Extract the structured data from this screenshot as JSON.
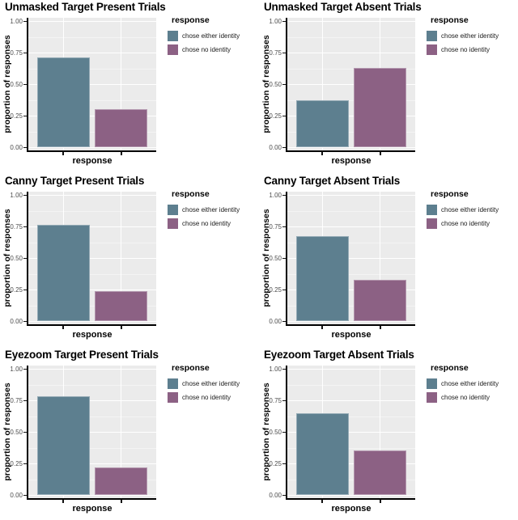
{
  "palette": {
    "bar_chose_either_identity": "#5d7f8f",
    "bar_chose_no_identity": "#8c6184",
    "panel_background": "#ebebeb",
    "grid_major": "#ffffff",
    "grid_minor": "#f4f4f4",
    "axis_line": "#000000",
    "tick_label_text": "#4d4d4d",
    "title_text": "#000000",
    "page_background": "#ffffff"
  },
  "chart_data": [
    {
      "type": "bar",
      "title": "Unmasked Target Present Trials",
      "categories": [
        "chose either identity",
        "chose no identity"
      ],
      "values": [
        0.71,
        0.3
      ],
      "series_colors": [
        "#5d7f8f",
        "#8c6184"
      ],
      "xlabel": "response",
      "ylabel": "proportion of responses",
      "yticks": [
        "0.00",
        "0.25",
        "0.50",
        "0.75",
        "1.00"
      ],
      "ytick_values": [
        0,
        0.25,
        0.5,
        0.75,
        1.0
      ],
      "ylim": [
        0,
        1.05
      ],
      "grid": "major+minor horizontal, major vertical at bars",
      "legend_title": "response",
      "legend_position": "right"
    },
    {
      "type": "bar",
      "title": "Unmasked Target Absent Trials",
      "categories": [
        "chose either identity",
        "chose no identity"
      ],
      "values": [
        0.37,
        0.63
      ],
      "series_colors": [
        "#5d7f8f",
        "#8c6184"
      ],
      "xlabel": "response",
      "ylabel": "proportion of responses",
      "yticks": [
        "0.00",
        "0.25",
        "0.50",
        "0.75",
        "1.00"
      ],
      "ytick_values": [
        0,
        0.25,
        0.5,
        0.75,
        1.0
      ],
      "ylim": [
        0,
        1.05
      ],
      "grid": "major+minor horizontal, major vertical at bars",
      "legend_title": "response",
      "legend_position": "right"
    },
    {
      "type": "bar",
      "title": "Canny Target Present Trials",
      "categories": [
        "chose either identity",
        "chose no identity"
      ],
      "values": [
        0.76,
        0.24
      ],
      "series_colors": [
        "#5d7f8f",
        "#8c6184"
      ],
      "xlabel": "response",
      "ylabel": "proportion of responses",
      "yticks": [
        "0.00",
        "0.25",
        "0.50",
        "0.75",
        "1.00"
      ],
      "ytick_values": [
        0,
        0.25,
        0.5,
        0.75,
        1.0
      ],
      "ylim": [
        0,
        1.05
      ],
      "grid": "major+minor horizontal, major vertical at bars",
      "legend_title": "response",
      "legend_position": "right"
    },
    {
      "type": "bar",
      "title": "Canny Target Absent Trials",
      "categories": [
        "chose either identity",
        "chose no identity"
      ],
      "values": [
        0.67,
        0.33
      ],
      "series_colors": [
        "#5d7f8f",
        "#8c6184"
      ],
      "xlabel": "response",
      "ylabel": "proportion of responses",
      "yticks": [
        "0.00",
        "0.25",
        "0.50",
        "0.75",
        "1.00"
      ],
      "ytick_values": [
        0,
        0.25,
        0.5,
        0.75,
        1.0
      ],
      "ylim": [
        0,
        1.05
      ],
      "grid": "major+minor horizontal, major vertical at bars",
      "legend_title": "response",
      "legend_position": "right"
    },
    {
      "type": "bar",
      "title": "Eyezoom Target Present Trials",
      "categories": [
        "chose either identity",
        "chose no identity"
      ],
      "values": [
        0.78,
        0.22
      ],
      "series_colors": [
        "#5d7f8f",
        "#8c6184"
      ],
      "xlabel": "response",
      "ylabel": "proportion of responses",
      "yticks": [
        "0.00",
        "0.25",
        "0.50",
        "0.75",
        "1.00"
      ],
      "ytick_values": [
        0,
        0.25,
        0.5,
        0.75,
        1.0
      ],
      "ylim": [
        0,
        1.05
      ],
      "grid": "major+minor horizontal, major vertical at bars",
      "legend_title": "response",
      "legend_position": "right"
    },
    {
      "type": "bar",
      "title": "Eyezoom Target Absent Trials",
      "categories": [
        "chose either identity",
        "chose no identity"
      ],
      "values": [
        0.65,
        0.35
      ],
      "series_colors": [
        "#5d7f8f",
        "#8c6184"
      ],
      "xlabel": "response",
      "ylabel": "proportion of responses",
      "yticks": [
        "0.00",
        "0.25",
        "0.50",
        "0.75",
        "1.00"
      ],
      "ytick_values": [
        0,
        0.25,
        0.5,
        0.75,
        1.0
      ],
      "ylim": [
        0,
        1.05
      ],
      "grid": "major+minor horizontal, major vertical at bars",
      "legend_title": "response",
      "legend_position": "right"
    }
  ]
}
